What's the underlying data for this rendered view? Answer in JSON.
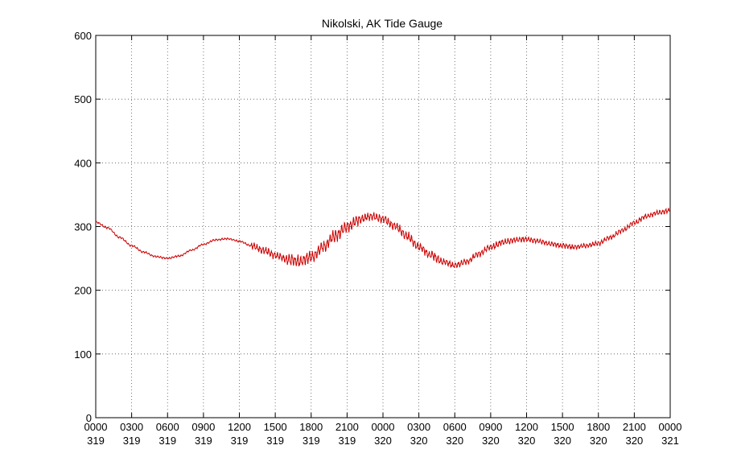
{
  "chart_data": {
    "type": "line",
    "title": "Nikolski, AK Tide Gauge",
    "xlabel": "",
    "ylabel": "",
    "ylim": [
      0,
      600
    ],
    "y_ticks": [
      0,
      100,
      200,
      300,
      400,
      500,
      600
    ],
    "x_range_hours": [
      0,
      48
    ],
    "x_ticks": [
      {
        "time": "0000",
        "day": "319"
      },
      {
        "time": "0300",
        "day": "319"
      },
      {
        "time": "0600",
        "day": "319"
      },
      {
        "time": "0900",
        "day": "319"
      },
      {
        "time": "1200",
        "day": "319"
      },
      {
        "time": "1500",
        "day": "319"
      },
      {
        "time": "1800",
        "day": "319"
      },
      {
        "time": "2100",
        "day": "319"
      },
      {
        "time": "0000",
        "day": "320"
      },
      {
        "time": "0300",
        "day": "320"
      },
      {
        "time": "0600",
        "day": "320"
      },
      {
        "time": "0900",
        "day": "320"
      },
      {
        "time": "1200",
        "day": "320"
      },
      {
        "time": "1500",
        "day": "320"
      },
      {
        "time": "1800",
        "day": "320"
      },
      {
        "time": "2100",
        "day": "320"
      },
      {
        "time": "0000",
        "day": "321"
      }
    ],
    "grid": true,
    "series": [
      {
        "color": "#cc0000",
        "x_hours": [
          0,
          1,
          2,
          3,
          4,
          5,
          6,
          7,
          8,
          9,
          10,
          11,
          12,
          13,
          14,
          15,
          16,
          17,
          18,
          19,
          20,
          21,
          22,
          23,
          24,
          25,
          26,
          27,
          28,
          29,
          30,
          31,
          32,
          33,
          34,
          35,
          36,
          37,
          38,
          39,
          40,
          41,
          42,
          43,
          44,
          45,
          46,
          47,
          48
        ],
        "values": [
          307,
          298,
          283,
          270,
          260,
          253,
          250,
          254,
          263,
          272,
          279,
          281,
          277,
          270,
          263,
          255,
          249,
          245,
          252,
          268,
          285,
          300,
          311,
          316,
          312,
          301,
          285,
          268,
          255,
          245,
          239,
          245,
          257,
          268,
          275,
          279,
          280,
          277,
          273,
          270,
          268,
          270,
          274,
          283,
          294,
          306,
          316,
          322,
          325
        ]
      }
    ],
    "noise_amplitude_hours": [
      {
        "from": 0,
        "to": 13,
        "amp": 1.5
      },
      {
        "from": 13,
        "to": 16,
        "amp": 6
      },
      {
        "from": 16,
        "to": 22,
        "amp": 10
      },
      {
        "from": 22,
        "to": 29,
        "amp": 7
      },
      {
        "from": 29,
        "to": 36,
        "amp": 5
      },
      {
        "from": 36,
        "to": 48,
        "amp": 4
      }
    ]
  }
}
